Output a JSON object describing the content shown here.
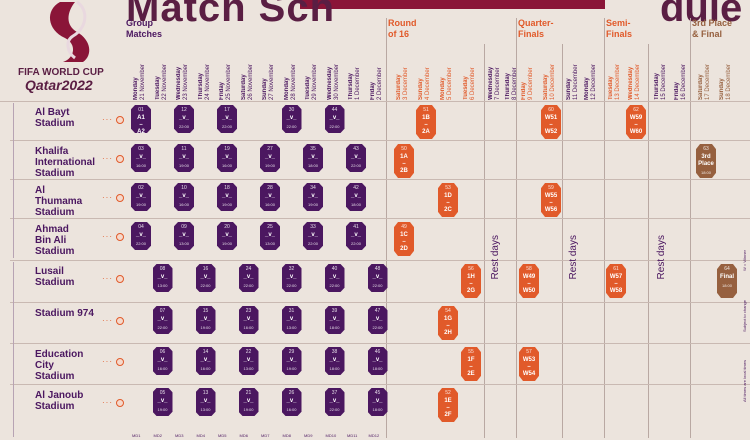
{
  "header": {
    "title_left": "Match Sch",
    "title_right": "dule"
  },
  "brand": {
    "line1": "FIFA WORLD CUP",
    "line2": "Qatar2022"
  },
  "phases": [
    {
      "label": "Group\nMatches",
      "tone": "p"
    },
    {
      "label": "Round\nof 16",
      "tone": "o"
    },
    {
      "label": "Quarter-\nFinals",
      "tone": "o"
    },
    {
      "label": "Semi-\nFinals",
      "tone": "o"
    },
    {
      "label": "3rd Place\n& Final",
      "tone": "b"
    }
  ],
  "days": [
    {
      "w": "Monday",
      "d": "21 November",
      "t": "p"
    },
    {
      "w": "Tuesday",
      "d": "22 November",
      "t": "p"
    },
    {
      "w": "Wednesday",
      "d": "23 November",
      "t": "p"
    },
    {
      "w": "Thursday",
      "d": "24 November",
      "t": "p"
    },
    {
      "w": "Friday",
      "d": "25 November",
      "t": "p"
    },
    {
      "w": "Saturday",
      "d": "26 November",
      "t": "p"
    },
    {
      "w": "Sunday",
      "d": "27 November",
      "t": "p"
    },
    {
      "w": "Monday",
      "d": "28 November",
      "t": "p"
    },
    {
      "w": "Tuesday",
      "d": "29 November",
      "t": "p"
    },
    {
      "w": "Wednesday",
      "d": "30 November",
      "t": "p"
    },
    {
      "w": "Thursday",
      "d": "1 December",
      "t": "p"
    },
    {
      "w": "Friday",
      "d": "2 December",
      "t": "p"
    },
    {
      "w": "Saturday",
      "d": "3 December",
      "t": "o"
    },
    {
      "w": "Sunday",
      "d": "4 December",
      "t": "o"
    },
    {
      "w": "Monday",
      "d": "5 December",
      "t": "o"
    },
    {
      "w": "Tuesday",
      "d": "6 December",
      "t": "o"
    },
    {
      "w": "Wednesday",
      "d": "7 December",
      "t": "p"
    },
    {
      "w": "Thursday",
      "d": "8 December",
      "t": "p"
    },
    {
      "w": "Friday",
      "d": "9 December",
      "t": "o"
    },
    {
      "w": "Saturday",
      "d": "10 December",
      "t": "o"
    },
    {
      "w": "Sunday",
      "d": "11 December",
      "t": "p"
    },
    {
      "w": "Monday",
      "d": "12 December",
      "t": "p"
    },
    {
      "w": "Tuesday",
      "d": "13 December",
      "t": "o"
    },
    {
      "w": "Wednesday",
      "d": "14 December",
      "t": "o"
    },
    {
      "w": "Thursday",
      "d": "15 December",
      "t": "p"
    },
    {
      "w": "Friday",
      "d": "16 December",
      "t": "p"
    },
    {
      "w": "Saturday",
      "d": "17 December",
      "t": "b"
    },
    {
      "w": "Sunday",
      "d": "18 December",
      "t": "b"
    }
  ],
  "stadiums": [
    "Al Bayt\nStadium",
    "Khalifa\nInternational\nStadium",
    "Al\nThumama\nStadium",
    "Ahmad\nBin Ali\nStadium",
    "Lusail\nStadium",
    "Stadium 974",
    "Education\nCity\nStadium",
    "Al Janoub\nStadium"
  ],
  "rest_label": "Rest days",
  "matches": [
    {
      "col": 0,
      "row": 0,
      "no": "01",
      "teams": "A1\n–\nA2",
      "time": "19:00",
      "tone": "p"
    },
    {
      "col": 2,
      "row": 0,
      "no": "12",
      "teams": "_v_",
      "time": "22:00",
      "tone": "p"
    },
    {
      "col": 4,
      "row": 0,
      "no": "17",
      "teams": "_v_",
      "time": "22:00",
      "tone": "p"
    },
    {
      "col": 7,
      "row": 0,
      "no": "30",
      "teams": "_v_",
      "time": "22:00",
      "tone": "p"
    },
    {
      "col": 9,
      "row": 0,
      "no": "44",
      "teams": "_v_",
      "time": "22:00",
      "tone": "p"
    },
    {
      "col": 0,
      "row": 1,
      "no": "03",
      "teams": "_v_",
      "time": "16:00",
      "tone": "p"
    },
    {
      "col": 2,
      "row": 1,
      "no": "11",
      "teams": "_v_",
      "time": "19:00",
      "tone": "p"
    },
    {
      "col": 4,
      "row": 1,
      "no": "19",
      "teams": "_v_",
      "time": "16:00",
      "tone": "p"
    },
    {
      "col": 6,
      "row": 1,
      "no": "27",
      "teams": "_v_",
      "time": "19:00",
      "tone": "p"
    },
    {
      "col": 8,
      "row": 1,
      "no": "35",
      "teams": "_v_",
      "time": "18:00",
      "tone": "p"
    },
    {
      "col": 10,
      "row": 1,
      "no": "43",
      "teams": "_v_",
      "time": "22:00",
      "tone": "p"
    },
    {
      "col": 0,
      "row": 2,
      "no": "02",
      "teams": "_v_",
      "time": "19:00",
      "tone": "p"
    },
    {
      "col": 2,
      "row": 2,
      "no": "10",
      "teams": "_v_",
      "time": "16:00",
      "tone": "p"
    },
    {
      "col": 4,
      "row": 2,
      "no": "18",
      "teams": "_v_",
      "time": "19:00",
      "tone": "p"
    },
    {
      "col": 6,
      "row": 2,
      "no": "28",
      "teams": "_v_",
      "time": "16:00",
      "tone": "p"
    },
    {
      "col": 8,
      "row": 2,
      "no": "34",
      "teams": "_v_",
      "time": "19:00",
      "tone": "p"
    },
    {
      "col": 10,
      "row": 2,
      "no": "42",
      "teams": "_v_",
      "time": "18:00",
      "tone": "p"
    },
    {
      "col": 0,
      "row": 3,
      "no": "04",
      "teams": "_v_",
      "time": "22:00",
      "tone": "p"
    },
    {
      "col": 2,
      "row": 3,
      "no": "09",
      "teams": "_v_",
      "time": "13:00",
      "tone": "p"
    },
    {
      "col": 4,
      "row": 3,
      "no": "20",
      "teams": "_v_",
      "time": "19:00",
      "tone": "p"
    },
    {
      "col": 6,
      "row": 3,
      "no": "25",
      "teams": "_v_",
      "time": "13:00",
      "tone": "p"
    },
    {
      "col": 8,
      "row": 3,
      "no": "33",
      "teams": "_v_",
      "time": "22:00",
      "tone": "p"
    },
    {
      "col": 10,
      "row": 3,
      "no": "41",
      "teams": "_v_",
      "time": "22:00",
      "tone": "p"
    },
    {
      "col": 1,
      "row": 4,
      "no": "08",
      "teams": "_v_",
      "time": "13:00",
      "tone": "p"
    },
    {
      "col": 3,
      "row": 4,
      "no": "16",
      "teams": "_v_",
      "time": "22:00",
      "tone": "p"
    },
    {
      "col": 5,
      "row": 4,
      "no": "24",
      "teams": "_v_",
      "time": "22:00",
      "tone": "p"
    },
    {
      "col": 7,
      "row": 4,
      "no": "32",
      "teams": "_v_",
      "time": "22:00",
      "tone": "p"
    },
    {
      "col": 9,
      "row": 4,
      "no": "40",
      "teams": "_v_",
      "time": "22:00",
      "tone": "p"
    },
    {
      "col": 11,
      "row": 4,
      "no": "48",
      "teams": "_v_",
      "time": "22:00",
      "tone": "p"
    },
    {
      "col": 1,
      "row": 5,
      "no": "07",
      "teams": "_v_",
      "time": "22:00",
      "tone": "p"
    },
    {
      "col": 3,
      "row": 5,
      "no": "15",
      "teams": "_v_",
      "time": "19:00",
      "tone": "p"
    },
    {
      "col": 5,
      "row": 5,
      "no": "23",
      "teams": "_v_",
      "time": "16:00",
      "tone": "p"
    },
    {
      "col": 7,
      "row": 5,
      "no": "31",
      "teams": "_v_",
      "time": "13:00",
      "tone": "p"
    },
    {
      "col": 9,
      "row": 5,
      "no": "39",
      "teams": "_v_",
      "time": "18:00",
      "tone": "p"
    },
    {
      "col": 11,
      "row": 5,
      "no": "47",
      "teams": "_v_",
      "time": "22:00",
      "tone": "p"
    },
    {
      "col": 1,
      "row": 6,
      "no": "06",
      "teams": "_v_",
      "time": "16:00",
      "tone": "p"
    },
    {
      "col": 3,
      "row": 6,
      "no": "14",
      "teams": "_v_",
      "time": "16:00",
      "tone": "p"
    },
    {
      "col": 5,
      "row": 6,
      "no": "22",
      "teams": "_v_",
      "time": "13:00",
      "tone": "p"
    },
    {
      "col": 7,
      "row": 6,
      "no": "29",
      "teams": "_v_",
      "time": "19:00",
      "tone": "p"
    },
    {
      "col": 9,
      "row": 6,
      "no": "38",
      "teams": "_v_",
      "time": "18:00",
      "tone": "p"
    },
    {
      "col": 11,
      "row": 6,
      "no": "46",
      "teams": "_v_",
      "time": "18:00",
      "tone": "p"
    },
    {
      "col": 1,
      "row": 7,
      "no": "05",
      "teams": "_v_",
      "time": "19:00",
      "tone": "p"
    },
    {
      "col": 3,
      "row": 7,
      "no": "13",
      "teams": "_v_",
      "time": "13:00",
      "tone": "p"
    },
    {
      "col": 5,
      "row": 7,
      "no": "21",
      "teams": "_v_",
      "time": "19:00",
      "tone": "p"
    },
    {
      "col": 7,
      "row": 7,
      "no": "26",
      "teams": "_v_",
      "time": "16:00",
      "tone": "p"
    },
    {
      "col": 9,
      "row": 7,
      "no": "37",
      "teams": "_v_",
      "time": "22:00",
      "tone": "p"
    },
    {
      "col": 11,
      "row": 7,
      "no": "45",
      "teams": "_v_",
      "time": "18:00",
      "tone": "p"
    },
    {
      "col": 13,
      "row": 0,
      "no": "51",
      "teams": "1B\n–\n2A",
      "time": "22:00",
      "tone": "o",
      "big": true
    },
    {
      "col": 12,
      "row": 1,
      "no": "50",
      "teams": "1A\n–\n2B",
      "time": "22:00",
      "tone": "o",
      "big": true
    },
    {
      "col": 14,
      "row": 2,
      "no": "53",
      "teams": "1D\n–\n2C",
      "time": "18:00",
      "tone": "o",
      "big": true
    },
    {
      "col": 12,
      "row": 3,
      "no": "49",
      "teams": "1C\n–\n2D",
      "time": "18:00",
      "tone": "o",
      "big": true
    },
    {
      "col": 15,
      "row": 4,
      "no": "56",
      "teams": "1H\n–\n2G",
      "time": "22:00",
      "tone": "o",
      "big": true
    },
    {
      "col": 14,
      "row": 5,
      "no": "54",
      "teams": "1G\n–\n2H",
      "time": "22:00",
      "tone": "o",
      "big": true
    },
    {
      "col": 15,
      "row": 6,
      "no": "55",
      "teams": "1F\n–\n2E",
      "time": "18:00",
      "tone": "o",
      "big": true
    },
    {
      "col": 14,
      "row": 7,
      "no": "52",
      "teams": "1E\n–\n2F",
      "time": "18:00",
      "tone": "o",
      "big": true
    },
    {
      "col": 19,
      "row": 0,
      "no": "60",
      "teams": "W51\n–\nW52",
      "time": "22:00",
      "tone": "o",
      "big": true
    },
    {
      "col": 19,
      "row": 2,
      "no": "59",
      "teams": "W55\n–\nW56",
      "time": "18:00",
      "tone": "o",
      "big": true
    },
    {
      "col": 18,
      "row": 4,
      "no": "58",
      "teams": "W49\n–\nW50",
      "time": "22:00",
      "tone": "o",
      "big": true
    },
    {
      "col": 18,
      "row": 6,
      "no": "57",
      "teams": "W53\n–\nW54",
      "time": "18:00",
      "tone": "o",
      "big": true
    },
    {
      "col": 23,
      "row": 0,
      "no": "62",
      "teams": "W59\n–\nW60",
      "time": "22:00",
      "tone": "o",
      "big": true
    },
    {
      "col": 22,
      "row": 4,
      "no": "61",
      "teams": "W57\n–\nW58",
      "time": "22:00",
      "tone": "o",
      "big": true
    },
    {
      "col": 26,
      "row": 1,
      "no": "63",
      "teams": "3rd\nPlace",
      "time": "18:00",
      "tone": "b",
      "big": true
    },
    {
      "col": 27,
      "row": 4,
      "no": "64",
      "teams": "Final",
      "time": "18:00",
      "tone": "b",
      "big": true
    }
  ],
  "side_notes": [
    "W = Winner",
    "Subject to change",
    "All times are local times"
  ],
  "footer_days": [
    "MD1",
    "MD2",
    "MD3",
    "MD4",
    "MD5",
    "MD6",
    "MD7",
    "MD8",
    "MD9",
    "MD10",
    "MD11",
    "MD12"
  ]
}
